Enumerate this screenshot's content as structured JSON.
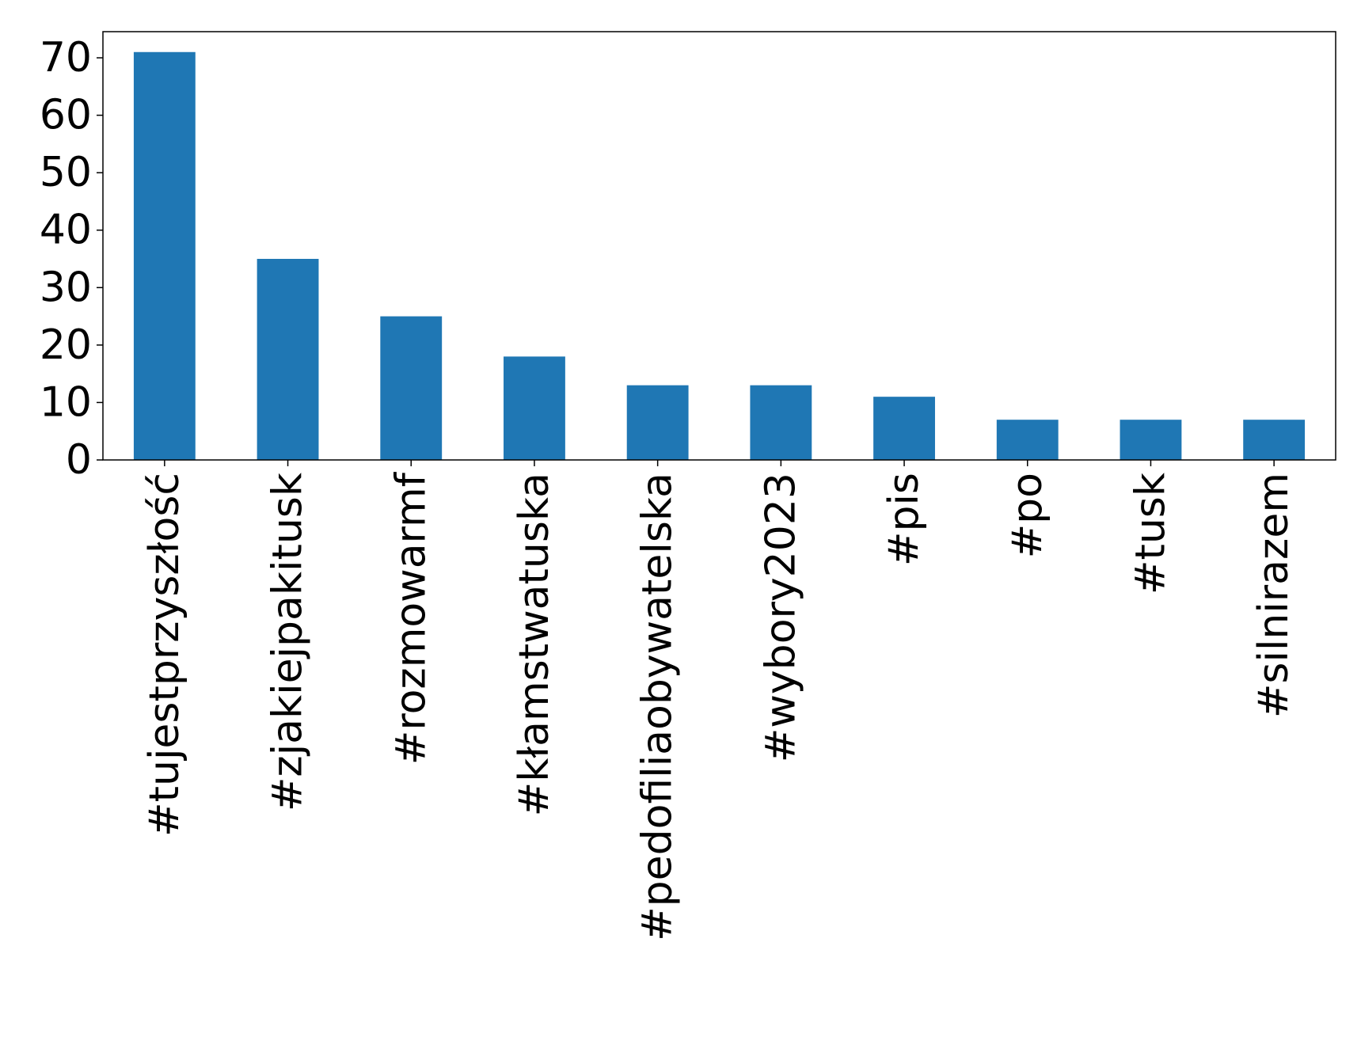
{
  "chart_data": {
    "type": "bar",
    "categories": [
      "#tujestprzyszłość",
      "#zjakiejpakitusk",
      "#rozmowarmf",
      "#kłamstwatuska",
      "#pedofiliaobywatelska",
      "#wybory2023",
      "#pis",
      "#po",
      "#tusk",
      "#silnirazem"
    ],
    "values": [
      71,
      35,
      25,
      18,
      13,
      13,
      11,
      7,
      7,
      7
    ],
    "color": "#1f77b4",
    "ylim": [
      0,
      74.55
    ],
    "yticks": [
      0,
      10,
      20,
      30,
      40,
      50,
      60,
      70
    ],
    "grid": false
  }
}
